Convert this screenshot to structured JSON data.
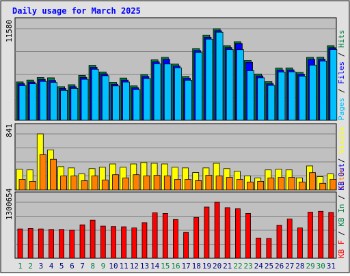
{
  "chart_data": {
    "type": "bar",
    "title": "Daily usage for March 2025",
    "categories": [
      "1",
      "2",
      "3",
      "4",
      "5",
      "6",
      "7",
      "8",
      "9",
      "10",
      "11",
      "12",
      "13",
      "14",
      "15",
      "16",
      "17",
      "18",
      "19",
      "20",
      "21",
      "22",
      "23",
      "24",
      "25",
      "26",
      "27",
      "28",
      "29",
      "30",
      "31"
    ],
    "weekend_days": [
      "1",
      "2",
      "8",
      "9",
      "15",
      "16",
      "22",
      "23",
      "29",
      "30"
    ],
    "colors": {
      "title": "#0000ff",
      "hits": "#008040",
      "files": "#0000ff",
      "pages": "#00c0ff",
      "visits": "#ffff00",
      "sites": "#ff8000",
      "kbytes": "#ff0000",
      "kb_in": "#008040",
      "kb_out": "#0000ff",
      "day_label": "#000080",
      "weekend_day_label": "#008040",
      "plot_background": "#c0c0c0",
      "frame_background": "#e0e0e0"
    },
    "panels": [
      {
        "id": "hits_files_pages",
        "ylabel_max": "11580",
        "ylim": [
          0,
          11580
        ],
        "legend": [
          "Pages",
          "Files",
          "Hits"
        ],
        "series": [
          {
            "name": "Hits",
            "values": [
              4850,
              5080,
              5400,
              5370,
              4240,
              4490,
              5660,
              6950,
              6110,
              4800,
              5340,
              4350,
              5780,
              7640,
              7960,
              7100,
              5540,
              9070,
              10780,
              11580,
              9430,
              9940,
              7550,
              5850,
              4880,
              6590,
              6620,
              6060,
              7960,
              7980,
              9430
            ]
          },
          {
            "name": "Files",
            "values": [
              4800,
              5000,
              5330,
              5200,
              4180,
              4420,
              5590,
              6870,
              6040,
              4730,
              5250,
              4290,
              5700,
              7560,
              7880,
              7030,
              5470,
              8990,
              10680,
              11500,
              9360,
              9880,
              7490,
              5780,
              4800,
              6520,
              6540,
              5990,
              7880,
              7900,
              9350
            ]
          },
          {
            "name": "Pages",
            "values": [
              4720,
              4960,
              5250,
              5130,
              4120,
              4370,
              5520,
              6790,
              5970,
              4680,
              5180,
              4230,
              5620,
              7480,
              7460,
              6970,
              5400,
              8920,
              10600,
              11480,
              9290,
              9270,
              6610,
              5710,
              4750,
              6450,
              6470,
              5920,
              7320,
              7840,
              9290
            ]
          }
        ]
      },
      {
        "id": "visits_sites",
        "ylabel_max": "841",
        "ylim": [
          0,
          841
        ],
        "legend": [
          "Sites",
          "Visits"
        ],
        "series": [
          {
            "name": "Visits",
            "values": [
              310,
              300,
              841,
              600,
              350,
              330,
              240,
              320,
              340,
              390,
              340,
              390,
              410,
              400,
              390,
              340,
              330,
              260,
              330,
              400,
              320,
              280,
              210,
              180,
              300,
              310,
              300,
              180,
              360,
              200,
              240
            ]
          },
          {
            "name": "Sites",
            "values": [
              200,
              170,
              570,
              500,
              250,
              250,
              180,
              250,
              190,
              270,
              220,
              270,
              250,
              260,
              250,
              200,
              200,
              180,
              260,
              250,
              230,
              200,
              160,
              170,
              220,
              230,
              230,
              160,
              300,
              140,
              200
            ]
          }
        ]
      },
      {
        "id": "kbytes",
        "ylabel_max": "1300654",
        "ylim": [
          0,
          1300654
        ],
        "legend": [
          "KB F",
          "KB In",
          "KB Out"
        ],
        "series": [
          {
            "name": "KB F",
            "values": [
              680000,
              690000,
              680000,
              670000,
              670000,
              650000,
              775000,
              885000,
              745000,
              735000,
              730000,
              705000,
              827000,
              1055000,
              1040000,
              900000,
              600000,
              947000,
              1190000,
              1300654,
              1175000,
              1148000,
              1040000,
              470000,
              460000,
              768000,
              910000,
              705000,
              1070000,
              1090000,
              1065000
            ]
          }
        ]
      }
    ]
  }
}
